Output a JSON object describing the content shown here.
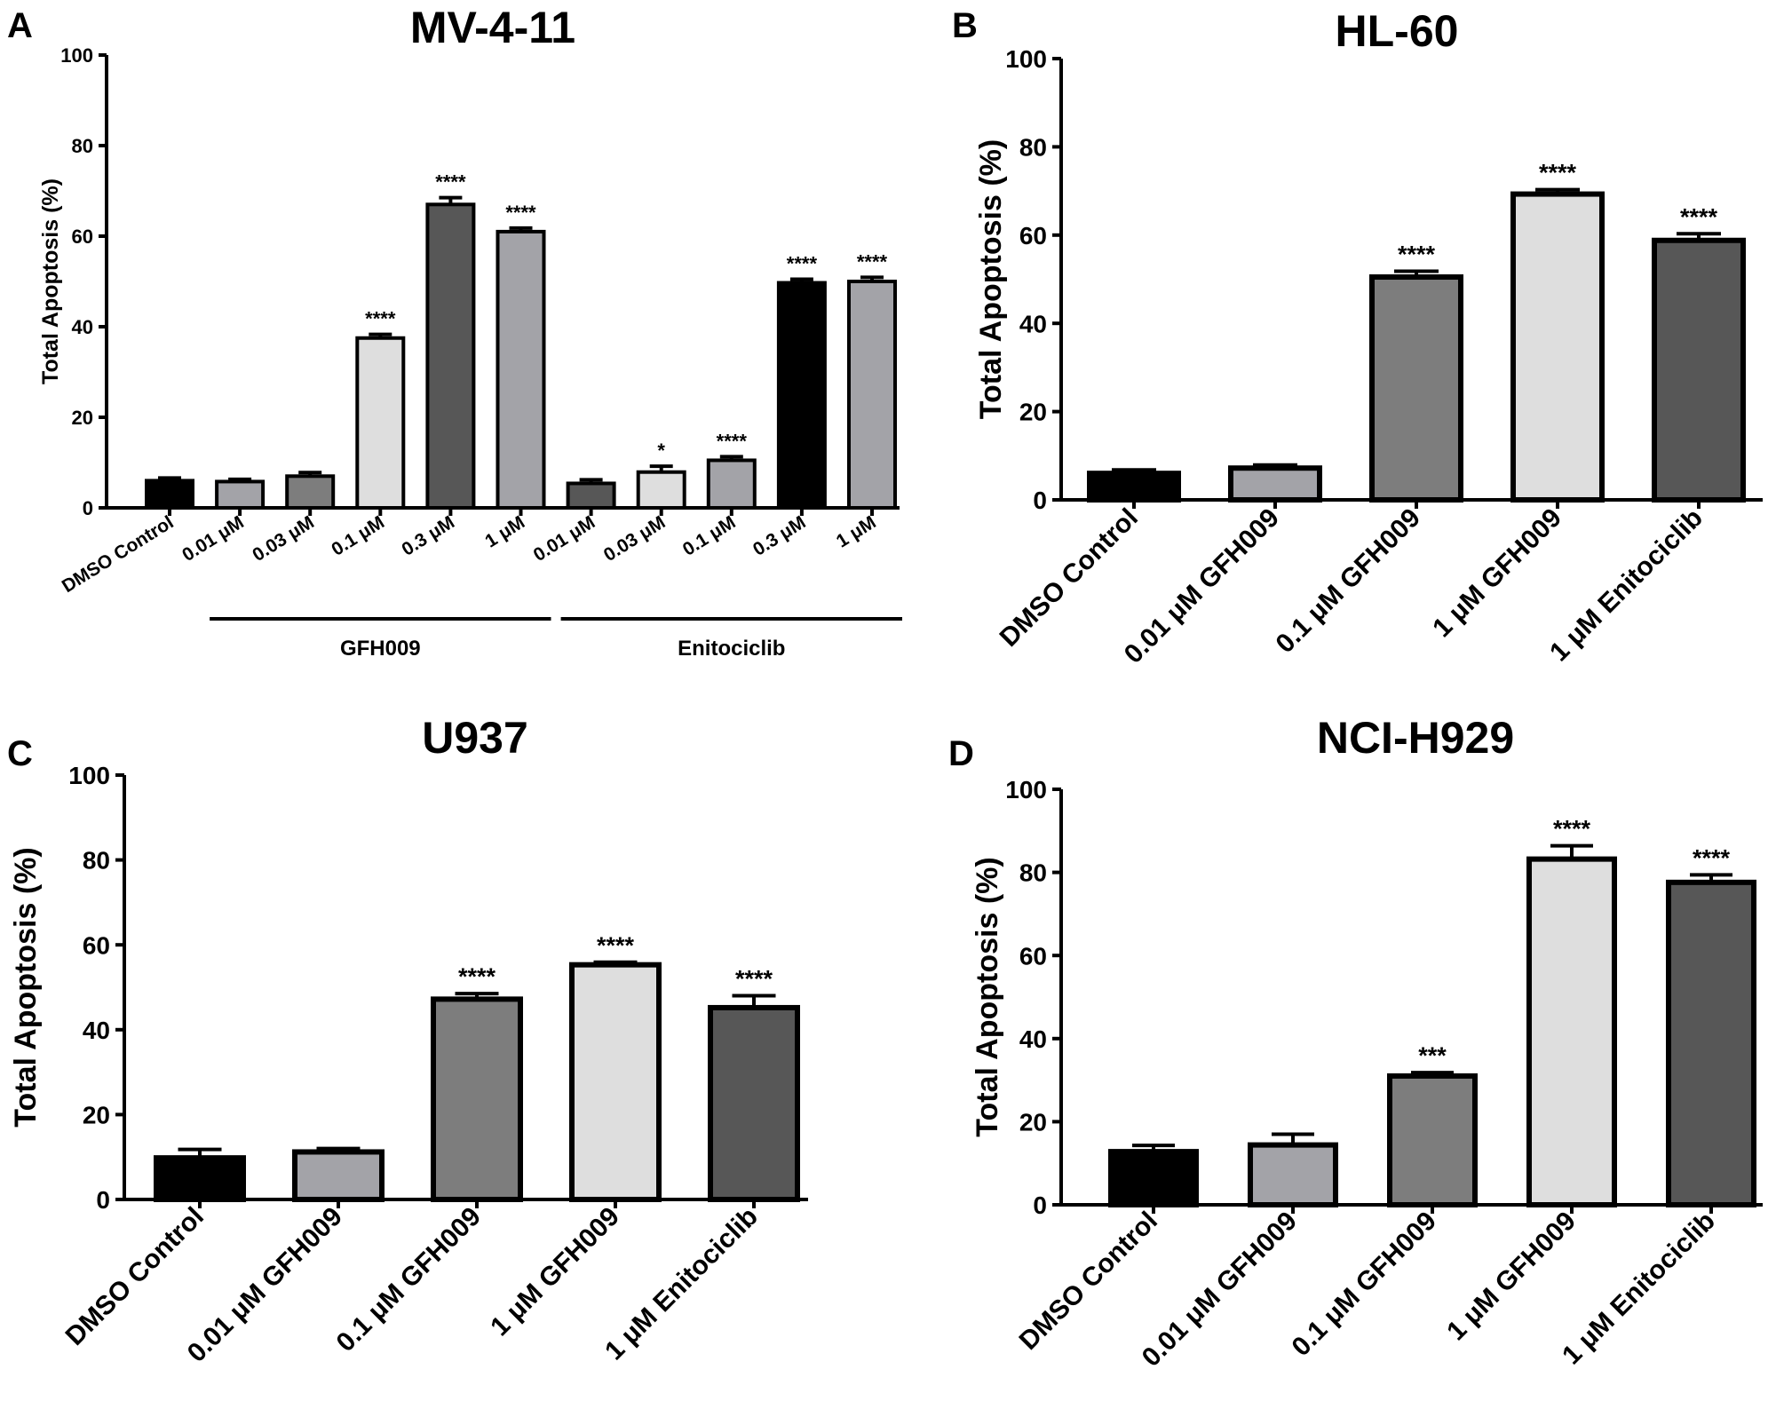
{
  "figure": {
    "panels": [
      {
        "id": "A",
        "letter": "A",
        "title": "MV-4-11"
      },
      {
        "id": "B",
        "letter": "B",
        "title": "HL-60"
      },
      {
        "id": "C",
        "letter": "C",
        "title": "U937"
      },
      {
        "id": "D",
        "letter": "D",
        "title": "NCI-H929"
      }
    ]
  },
  "chart_data": [
    {
      "type": "bar",
      "panel": "A",
      "title": "MV-4-11",
      "ylabel": "Total Apoptosis (%)",
      "xlabel": "",
      "ylim": [
        0,
        100
      ],
      "yticks": [
        0,
        20,
        40,
        60,
        80,
        100
      ],
      "categories": [
        "DMSO Control",
        "0.01 μM",
        "0.03 μM",
        "0.1 μM",
        "0.3 μM",
        "1 μM",
        "0.01 μM",
        "0.03 μM",
        "0.1 μM",
        "0.3 μM",
        "1 μM"
      ],
      "values": [
        6,
        5.8,
        7,
        37.5,
        67,
        61,
        5.4,
        7.9,
        10.5,
        49.7,
        50
      ],
      "errors": [
        0.6,
        0.5,
        0.8,
        0.8,
        1.5,
        0.8,
        0.8,
        1.3,
        0.8,
        0.8,
        0.9
      ],
      "significance": [
        "",
        "",
        "",
        "****",
        "****",
        "****",
        "",
        "*",
        "****",
        "****",
        "****"
      ],
      "colors": [
        "#000000",
        "#a3a3a8",
        "#7d7d7d",
        "#dedede",
        "#575757",
        "#a3a3a8",
        "#575757",
        "#dedede",
        "#a3a3a8",
        "#000000",
        "#a3a3a8"
      ],
      "groups": [
        {
          "label": "GFH009",
          "from": 1,
          "to": 5
        },
        {
          "label": "Enitociclib",
          "from": 6,
          "to": 10
        }
      ],
      "grid": false,
      "legend": "none"
    },
    {
      "type": "bar",
      "panel": "B",
      "title": "HL-60",
      "ylabel": "Total Apoptosis (%)",
      "xlabel": "",
      "ylim": [
        0,
        100
      ],
      "yticks": [
        0,
        20,
        40,
        60,
        80,
        100
      ],
      "categories": [
        "DMSO Control",
        "0.01 μM GFH009",
        "0.1 μM GFH009",
        "1 μM GFH009",
        "1 μM Enitociclib"
      ],
      "values": [
        6,
        7.2,
        50.5,
        69.3,
        58.8
      ],
      "errors": [
        0.8,
        0.7,
        1.3,
        1.0,
        1.5
      ],
      "significance": [
        "",
        "",
        "****",
        "****",
        "****"
      ],
      "colors": [
        "#000000",
        "#a3a3a8",
        "#7d7d7d",
        "#dedede",
        "#575757"
      ],
      "groups": [],
      "grid": false,
      "legend": "none"
    },
    {
      "type": "bar",
      "panel": "C",
      "title": "U937",
      "ylabel": "Total Apoptosis (%)",
      "xlabel": "",
      "ylim": [
        0,
        100
      ],
      "yticks": [
        0,
        20,
        40,
        60,
        80,
        100
      ],
      "categories": [
        "DMSO Control",
        "0.01 μM GFH009",
        "0.1 μM GFH009",
        "1 μM GFH009",
        "1 μM Enitociclib"
      ],
      "values": [
        9.8,
        11.2,
        47.2,
        55.3,
        45.2
      ],
      "errors": [
        2.0,
        0.8,
        1.3,
        0.6,
        2.8
      ],
      "significance": [
        "",
        "",
        "****",
        "****",
        "****"
      ],
      "colors": [
        "#000000",
        "#a3a3a8",
        "#7d7d7d",
        "#dedede",
        "#575757"
      ],
      "groups": [],
      "grid": false,
      "legend": "none"
    },
    {
      "type": "bar",
      "panel": "D",
      "title": "NCI-H929",
      "ylabel": "Total Apoptosis (%)",
      "xlabel": "",
      "ylim": [
        0,
        100
      ],
      "yticks": [
        0,
        20,
        40,
        60,
        80,
        100
      ],
      "categories": [
        "DMSO Control",
        "0.01 μM GFH009",
        "0.1 μM GFH009",
        "1 μM GFH009",
        "1 μM Enitociclib"
      ],
      "values": [
        12.8,
        14.4,
        31,
        83.2,
        77.6
      ],
      "errors": [
        1.5,
        2.6,
        0.8,
        3.2,
        1.8
      ],
      "significance": [
        "",
        "",
        "***",
        "****",
        "****"
      ],
      "colors": [
        "#000000",
        "#a3a3a8",
        "#7d7d7d",
        "#dedede",
        "#575757"
      ],
      "groups": [],
      "grid": false,
      "legend": "none"
    }
  ]
}
